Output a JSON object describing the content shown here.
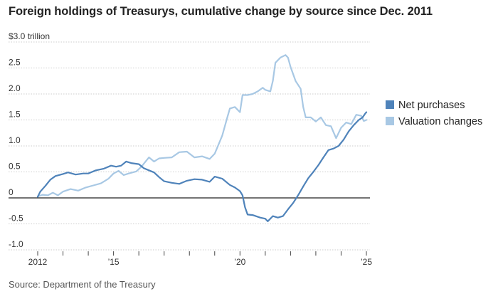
{
  "title": "Foreign holdings of Treasurys, cumulative change by source since Dec. 2011",
  "source": "Source: Department of the Treasury",
  "colors": {
    "net_purchases": "#4f83ba",
    "valuation_changes": "#a8c8e4",
    "zero_line": "#222222",
    "grid": "#cccccc"
  },
  "chart_data": {
    "type": "line",
    "title": "Foreign holdings of Treasurys, cumulative change by source since Dec. 2011",
    "ylabel": "",
    "xlabel": "",
    "unit": "trillion dollars",
    "ylim": [
      -1.0,
      3.0
    ],
    "xlim": [
      2011.95,
      2025.05
    ],
    "grid": true,
    "legend_placement": "right",
    "y_ticks": [
      {
        "value": 3.0,
        "label": "$3.0 trillion"
      },
      {
        "value": 2.5,
        "label": "2.5"
      },
      {
        "value": 2.0,
        "label": "2.0"
      },
      {
        "value": 1.5,
        "label": "1.5"
      },
      {
        "value": 1.0,
        "label": "1.0"
      },
      {
        "value": 0.5,
        "label": "0.5"
      },
      {
        "value": 0,
        "label": "0"
      },
      {
        "value": -0.5,
        "label": "-0.5"
      },
      {
        "value": -1.0,
        "label": "-1.0"
      }
    ],
    "x_ticks": [
      {
        "value": 2012,
        "label": "2012"
      },
      {
        "value": 2015,
        "label": "’15"
      },
      {
        "value": 2020,
        "label": "’20"
      },
      {
        "value": 2025,
        "label": "’25"
      }
    ],
    "x_minor_ticks": [
      2013,
      2014,
      2016,
      2017,
      2018,
      2019,
      2021,
      2022,
      2023,
      2024
    ],
    "series": [
      {
        "name": "Net purchases",
        "color": "#4f83ba",
        "points": [
          [
            2012.0,
            0.02
          ],
          [
            2012.1,
            0.12
          ],
          [
            2012.3,
            0.23
          ],
          [
            2012.5,
            0.35
          ],
          [
            2012.7,
            0.42
          ],
          [
            2013.0,
            0.46
          ],
          [
            2013.2,
            0.49
          ],
          [
            2013.5,
            0.45
          ],
          [
            2013.8,
            0.47
          ],
          [
            2014.0,
            0.47
          ],
          [
            2014.3,
            0.53
          ],
          [
            2014.6,
            0.56
          ],
          [
            2014.9,
            0.62
          ],
          [
            2015.1,
            0.6
          ],
          [
            2015.3,
            0.62
          ],
          [
            2015.5,
            0.7
          ],
          [
            2015.7,
            0.67
          ],
          [
            2016.0,
            0.65
          ],
          [
            2016.2,
            0.57
          ],
          [
            2016.4,
            0.53
          ],
          [
            2016.6,
            0.49
          ],
          [
            2016.8,
            0.4
          ],
          [
            2017.0,
            0.32
          ],
          [
            2017.3,
            0.29
          ],
          [
            2017.6,
            0.27
          ],
          [
            2017.9,
            0.33
          ],
          [
            2018.2,
            0.36
          ],
          [
            2018.5,
            0.35
          ],
          [
            2018.8,
            0.31
          ],
          [
            2019.0,
            0.41
          ],
          [
            2019.3,
            0.37
          ],
          [
            2019.6,
            0.25
          ],
          [
            2019.8,
            0.2
          ],
          [
            2020.0,
            0.13
          ],
          [
            2020.1,
            0.05
          ],
          [
            2020.2,
            -0.18
          ],
          [
            2020.3,
            -0.32
          ],
          [
            2020.5,
            -0.33
          ],
          [
            2020.8,
            -0.38
          ],
          [
            2021.0,
            -0.4
          ],
          [
            2021.1,
            -0.45
          ],
          [
            2021.3,
            -0.35
          ],
          [
            2021.5,
            -0.38
          ],
          [
            2021.7,
            -0.35
          ],
          [
            2021.9,
            -0.22
          ],
          [
            2022.1,
            -0.1
          ],
          [
            2022.3,
            0.05
          ],
          [
            2022.5,
            0.22
          ],
          [
            2022.7,
            0.38
          ],
          [
            2022.9,
            0.5
          ],
          [
            2023.1,
            0.63
          ],
          [
            2023.3,
            0.78
          ],
          [
            2023.5,
            0.92
          ],
          [
            2023.7,
            0.95
          ],
          [
            2023.9,
            1.0
          ],
          [
            2024.1,
            1.12
          ],
          [
            2024.3,
            1.28
          ],
          [
            2024.5,
            1.4
          ],
          [
            2024.7,
            1.5
          ],
          [
            2024.85,
            1.55
          ],
          [
            2024.95,
            1.62
          ],
          [
            2025.0,
            1.65
          ]
        ]
      },
      {
        "name": "Valuation changes",
        "color": "#a8c8e4",
        "points": [
          [
            2012.0,
            0.03
          ],
          [
            2012.2,
            0.06
          ],
          [
            2012.4,
            0.05
          ],
          [
            2012.6,
            0.1
          ],
          [
            2012.8,
            0.05
          ],
          [
            2013.0,
            0.12
          ],
          [
            2013.3,
            0.17
          ],
          [
            2013.6,
            0.14
          ],
          [
            2013.9,
            0.2
          ],
          [
            2014.2,
            0.24
          ],
          [
            2014.5,
            0.28
          ],
          [
            2014.8,
            0.37
          ],
          [
            2015.0,
            0.47
          ],
          [
            2015.2,
            0.52
          ],
          [
            2015.4,
            0.44
          ],
          [
            2015.6,
            0.47
          ],
          [
            2015.9,
            0.51
          ],
          [
            2016.1,
            0.6
          ],
          [
            2016.4,
            0.78
          ],
          [
            2016.6,
            0.7
          ],
          [
            2016.8,
            0.76
          ],
          [
            2017.0,
            0.77
          ],
          [
            2017.3,
            0.78
          ],
          [
            2017.6,
            0.88
          ],
          [
            2017.9,
            0.89
          ],
          [
            2018.2,
            0.78
          ],
          [
            2018.5,
            0.8
          ],
          [
            2018.8,
            0.75
          ],
          [
            2019.0,
            0.85
          ],
          [
            2019.3,
            1.2
          ],
          [
            2019.5,
            1.55
          ],
          [
            2019.6,
            1.72
          ],
          [
            2019.8,
            1.75
          ],
          [
            2020.0,
            1.65
          ],
          [
            2020.1,
            1.98
          ],
          [
            2020.3,
            1.98
          ],
          [
            2020.5,
            2.0
          ],
          [
            2020.7,
            2.05
          ],
          [
            2020.9,
            2.12
          ],
          [
            2021.0,
            2.08
          ],
          [
            2021.2,
            2.05
          ],
          [
            2021.3,
            2.25
          ],
          [
            2021.4,
            2.6
          ],
          [
            2021.6,
            2.7
          ],
          [
            2021.8,
            2.75
          ],
          [
            2021.9,
            2.7
          ],
          [
            2022.0,
            2.52
          ],
          [
            2022.2,
            2.25
          ],
          [
            2022.4,
            2.1
          ],
          [
            2022.5,
            1.75
          ],
          [
            2022.6,
            1.55
          ],
          [
            2022.8,
            1.55
          ],
          [
            2023.0,
            1.47
          ],
          [
            2023.2,
            1.55
          ],
          [
            2023.4,
            1.4
          ],
          [
            2023.6,
            1.38
          ],
          [
            2023.8,
            1.15
          ],
          [
            2024.0,
            1.35
          ],
          [
            2024.2,
            1.45
          ],
          [
            2024.4,
            1.42
          ],
          [
            2024.6,
            1.6
          ],
          [
            2024.8,
            1.58
          ],
          [
            2024.9,
            1.48
          ],
          [
            2025.0,
            1.5
          ]
        ]
      }
    ]
  }
}
